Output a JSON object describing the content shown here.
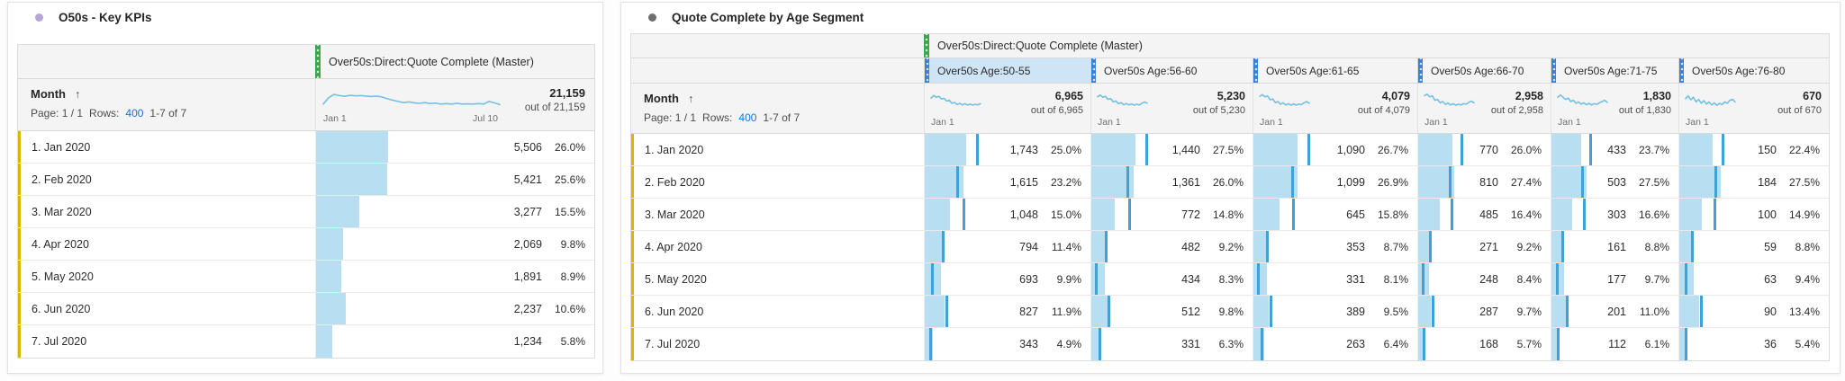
{
  "colors": {
    "accent_link": "#1473e6",
    "bar_fill": "#b7def1",
    "bar_marker": "#41a0d6",
    "sparkline": "#74c0e3",
    "metric_drag_handle": "#38a84a",
    "segment_drag_handle": "#3780d8",
    "dimension_strip": "#d9b600",
    "selected_segment_bg": "#cfe4f4",
    "header_bg": "#f4f4f4"
  },
  "panels": [
    {
      "title": "O50s - Key KPIs",
      "dot_color": "#b5a6d8",
      "table": {
        "metric_header": "Over50s:Direct:Quote Complete (Master)",
        "dim_header": "Month",
        "sort_arrow": "↑",
        "pagination": {
          "page": "Page: 1 / 1",
          "rows_label": "Rows:",
          "rows_value": "400",
          "range": "1-7 of 7"
        },
        "columns": [
          {
            "label": "Over50s:Direct:Quote Complete (Master)",
            "total": "21,159",
            "out_of": "out of 21,159",
            "start_label": "Jan 1",
            "end_label": "Jul 10",
            "sparkline": [
              66,
              40,
              26,
              31,
              34,
              30,
              32,
              31,
              33,
              35,
              33,
              37,
              44,
              50,
              55,
              60,
              57,
              61,
              63,
              60,
              64,
              62,
              66,
              64,
              66,
              63,
              66,
              65,
              66,
              64,
              66,
              55,
              61,
              68
            ]
          }
        ],
        "rows": [
          {
            "label": "1. Jan 2020",
            "cells": [
              {
                "value": "5,506",
                "pct": "26.0%",
                "bar": 26.0
              }
            ]
          },
          {
            "label": "2. Feb 2020",
            "cells": [
              {
                "value": "5,421",
                "pct": "25.6%",
                "bar": 25.6
              }
            ]
          },
          {
            "label": "3. Mar 2020",
            "cells": [
              {
                "value": "3,277",
                "pct": "15.5%",
                "bar": 15.5
              }
            ]
          },
          {
            "label": "4. Apr 2020",
            "cells": [
              {
                "value": "2,069",
                "pct": "9.8%",
                "bar": 9.8
              }
            ]
          },
          {
            "label": "5. May 2020",
            "cells": [
              {
                "value": "1,891",
                "pct": "8.9%",
                "bar": 8.9
              }
            ]
          },
          {
            "label": "6. Jun 2020",
            "cells": [
              {
                "value": "2,237",
                "pct": "10.6%",
                "bar": 10.6
              }
            ]
          },
          {
            "label": "7. Jul 2020",
            "cells": [
              {
                "value": "1,234",
                "pct": "5.8%",
                "bar": 5.8
              }
            ]
          }
        ]
      }
    },
    {
      "title": "Quote Complete by Age Segment",
      "dot_color": "#6e6e6e",
      "table": {
        "metric_header": "Over50s:Direct:Quote Complete (Master)",
        "dim_header": "Month",
        "sort_arrow": "↑",
        "pagination": {
          "page": "Page: 1 / 1",
          "rows_label": "Rows:",
          "rows_value": "400",
          "range": "1-7 of 7"
        },
        "marker_deltas": [
          6,
          -4,
          8,
          -1,
          -6,
          0.5,
          -2
        ],
        "columns": [
          {
            "label": "Over50s Age:50-55",
            "selected": true,
            "total": "6,965",
            "out_of": "out of 6,965",
            "start_label": "Jan 1",
            "sparkline": [
              34,
              22,
              30,
              26,
              38,
              35,
              48,
              44,
              58,
              54,
              64,
              58,
              66,
              60,
              66,
              62,
              66,
              63,
              65,
              60
            ]
          },
          {
            "label": "Over50s Age:56-60",
            "selected": false,
            "total": "5,230",
            "out_of": "out of 5,230",
            "start_label": "Jan 1",
            "sparkline": [
              28,
              20,
              30,
              26,
              40,
              36,
              52,
              47,
              60,
              55,
              65,
              59,
              66,
              61,
              67,
              62,
              66,
              58,
              52,
              57
            ]
          },
          {
            "label": "Over50s Age:61-65",
            "selected": false,
            "total": "4,079",
            "out_of": "out of 4,079",
            "start_label": "Jan 1",
            "sparkline": [
              26,
              18,
              28,
              24,
              42,
              38,
              55,
              50,
              62,
              56,
              66,
              60,
              67,
              61,
              66,
              62,
              64,
              56,
              50,
              58
            ]
          },
          {
            "label": "Over50s Age:66-70",
            "selected": false,
            "total": "2,958",
            "out_of": "out of 2,958",
            "start_label": "Jan 1",
            "sparkline": [
              22,
              16,
              28,
              24,
              44,
              40,
              56,
              50,
              63,
              57,
              66,
              60,
              67,
              62,
              66,
              60,
              62,
              54,
              48,
              56
            ]
          },
          {
            "label": "Over50s Age:71-75",
            "selected": false,
            "total": "1,830",
            "out_of": "out of 1,830",
            "start_label": "Jan 1",
            "sparkline": [
              30,
              20,
              30,
              40,
              34,
              50,
              44,
              58,
              52,
              62,
              56,
              65,
              58,
              66,
              60,
              63,
              56,
              50,
              44,
              54
            ]
          },
          {
            "label": "Over50s Age:76-80",
            "selected": false,
            "total": "670",
            "out_of": "out of 670",
            "start_label": "Jan 1",
            "sparkline": [
              36,
              24,
              42,
              30,
              52,
              40,
              58,
              46,
              62,
              52,
              66,
              56,
              68,
              58,
              64,
              52,
              58,
              44,
              40,
              52
            ]
          }
        ],
        "rows": [
          {
            "label": "1. Jan 2020",
            "cells": [
              {
                "value": "1,743",
                "pct": "25.0%",
                "bar": 25.0
              },
              {
                "value": "1,440",
                "pct": "27.5%",
                "bar": 27.5
              },
              {
                "value": "1,090",
                "pct": "26.7%",
                "bar": 26.7
              },
              {
                "value": "770",
                "pct": "26.0%",
                "bar": 26.0
              },
              {
                "value": "433",
                "pct": "23.7%",
                "bar": 23.7
              },
              {
                "value": "150",
                "pct": "22.4%",
                "bar": 22.4
              }
            ]
          },
          {
            "label": "2. Feb 2020",
            "cells": [
              {
                "value": "1,615",
                "pct": "23.2%",
                "bar": 23.2
              },
              {
                "value": "1,361",
                "pct": "26.0%",
                "bar": 26.0
              },
              {
                "value": "1,099",
                "pct": "26.9%",
                "bar": 26.9
              },
              {
                "value": "810",
                "pct": "27.4%",
                "bar": 27.4
              },
              {
                "value": "503",
                "pct": "27.5%",
                "bar": 27.5
              },
              {
                "value": "184",
                "pct": "27.5%",
                "bar": 27.5
              }
            ]
          },
          {
            "label": "3. Mar 2020",
            "cells": [
              {
                "value": "1,048",
                "pct": "15.0%",
                "bar": 15.0
              },
              {
                "value": "772",
                "pct": "14.8%",
                "bar": 14.8
              },
              {
                "value": "645",
                "pct": "15.8%",
                "bar": 15.8
              },
              {
                "value": "485",
                "pct": "16.4%",
                "bar": 16.4
              },
              {
                "value": "303",
                "pct": "16.6%",
                "bar": 16.6
              },
              {
                "value": "100",
                "pct": "14.9%",
                "bar": 14.9
              }
            ]
          },
          {
            "label": "4. Apr 2020",
            "cells": [
              {
                "value": "794",
                "pct": "11.4%",
                "bar": 11.4
              },
              {
                "value": "482",
                "pct": "9.2%",
                "bar": 9.2
              },
              {
                "value": "353",
                "pct": "8.7%",
                "bar": 8.7
              },
              {
                "value": "271",
                "pct": "9.2%",
                "bar": 9.2
              },
              {
                "value": "161",
                "pct": "8.8%",
                "bar": 8.8
              },
              {
                "value": "59",
                "pct": "8.8%",
                "bar": 8.8
              }
            ]
          },
          {
            "label": "5. May 2020",
            "cells": [
              {
                "value": "693",
                "pct": "9.9%",
                "bar": 9.9
              },
              {
                "value": "434",
                "pct": "8.3%",
                "bar": 8.3
              },
              {
                "value": "331",
                "pct": "8.1%",
                "bar": 8.1
              },
              {
                "value": "248",
                "pct": "8.4%",
                "bar": 8.4
              },
              {
                "value": "177",
                "pct": "9.7%",
                "bar": 9.7
              },
              {
                "value": "63",
                "pct": "9.4%",
                "bar": 9.4
              }
            ]
          },
          {
            "label": "6. Jun 2020",
            "cells": [
              {
                "value": "827",
                "pct": "11.9%",
                "bar": 11.9
              },
              {
                "value": "512",
                "pct": "9.8%",
                "bar": 9.8
              },
              {
                "value": "389",
                "pct": "9.5%",
                "bar": 9.5
              },
              {
                "value": "287",
                "pct": "9.7%",
                "bar": 9.7
              },
              {
                "value": "201",
                "pct": "11.0%",
                "bar": 11.0
              },
              {
                "value": "90",
                "pct": "13.4%",
                "bar": 13.4
              }
            ]
          },
          {
            "label": "7. Jul 2020",
            "cells": [
              {
                "value": "343",
                "pct": "4.9%",
                "bar": 4.9
              },
              {
                "value": "331",
                "pct": "6.3%",
                "bar": 6.3
              },
              {
                "value": "263",
                "pct": "6.4%",
                "bar": 6.4
              },
              {
                "value": "168",
                "pct": "5.7%",
                "bar": 5.7
              },
              {
                "value": "112",
                "pct": "6.1%",
                "bar": 6.1
              },
              {
                "value": "36",
                "pct": "5.4%",
                "bar": 5.4
              }
            ]
          }
        ]
      }
    }
  ]
}
